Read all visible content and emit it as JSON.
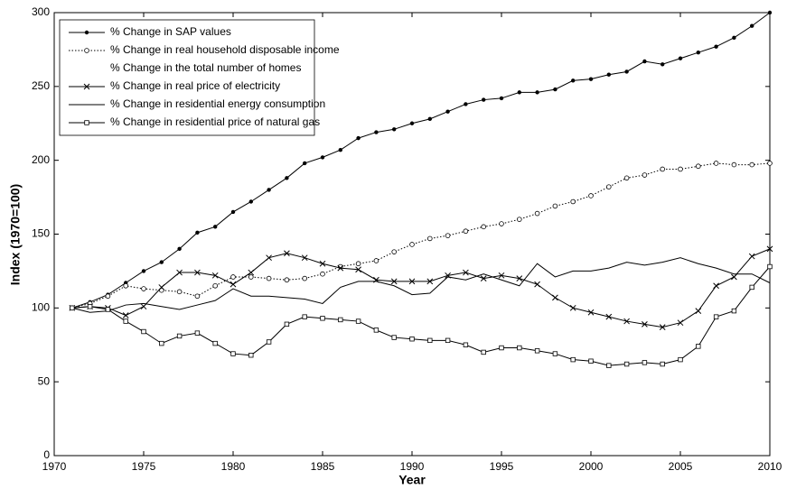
{
  "chart_data": {
    "type": "line",
    "x_label": "Year",
    "y_label": "Index (1970=100)",
    "xlim": [
      1970,
      2010
    ],
    "xticks": [
      1970,
      1975,
      1980,
      1985,
      1990,
      1995,
      2000,
      2005,
      2010
    ],
    "ylim": [
      0,
      300
    ],
    "yticks": [
      0,
      50,
      100,
      150,
      200,
      250,
      300
    ],
    "legend": "upper-left",
    "x": [
      1971,
      1972,
      1973,
      1974,
      1975,
      1976,
      1977,
      1978,
      1979,
      1980,
      1981,
      1982,
      1983,
      1984,
      1985,
      1986,
      1987,
      1988,
      1989,
      1990,
      1991,
      1992,
      1993,
      1994,
      1995,
      1996,
      1997,
      1998,
      1999,
      2000,
      2001,
      2002,
      2003,
      2004,
      2005,
      2006,
      2007,
      2008,
      2009,
      2010
    ],
    "series": [
      {
        "name": "% Change in SAP values",
        "color": "#000000",
        "marker": "dot",
        "dash": "solid",
        "values": [
          100,
          104,
          109,
          117,
          125,
          131,
          140,
          151,
          155,
          165,
          172,
          180,
          188,
          198,
          202,
          207,
          215,
          219,
          221,
          225,
          228,
          233,
          238,
          241,
          242,
          246,
          246,
          248,
          254,
          255,
          258,
          260,
          267,
          265,
          269,
          273,
          277,
          283,
          291,
          300
        ]
      },
      {
        "name": "% Change in real household disposable income",
        "color": "#000000",
        "marker": "circle",
        "dash": "dotted",
        "values": [
          100,
          103,
          108,
          115,
          113,
          112,
          111,
          108,
          115,
          121,
          121,
          120,
          119,
          120,
          123,
          128,
          130,
          132,
          138,
          143,
          147,
          149,
          152,
          155,
          157,
          160,
          164,
          169,
          172,
          176,
          182,
          188,
          190,
          194,
          194,
          196,
          198,
          197,
          197,
          198
        ]
      },
      {
        "name": "% Change in the total number of homes",
        "color": "#000000",
        "marker": "none",
        "dash": "none",
        "values": [
          null,
          null,
          null,
          null,
          null,
          null,
          null,
          null,
          null,
          null,
          null,
          null,
          null,
          null,
          null,
          null,
          null,
          null,
          null,
          null,
          null,
          null,
          null,
          null,
          null,
          null,
          null,
          null,
          null,
          null,
          null,
          null,
          null,
          null,
          null,
          null,
          null,
          null,
          null,
          null
        ]
      },
      {
        "name": "% Change in real price of electricity",
        "color": "#000000",
        "marker": "x",
        "dash": "solid",
        "values": [
          100,
          101,
          100,
          95,
          101,
          114,
          124,
          124,
          122,
          116,
          124,
          134,
          137,
          134,
          130,
          127,
          126,
          119,
          118,
          118,
          118,
          122,
          124,
          120,
          122,
          120,
          116,
          107,
          100,
          97,
          94,
          91,
          89,
          87,
          90,
          98,
          115,
          121,
          135,
          140
        ]
      },
      {
        "name": "% Change in residential energy consumption",
        "color": "#000000",
        "marker": "none",
        "dash": "solid",
        "values": [
          100,
          97,
          98,
          102,
          103,
          101,
          99,
          102,
          105,
          113,
          108,
          108,
          107,
          106,
          103,
          114,
          118,
          118,
          115,
          109,
          110,
          121,
          119,
          123,
          119,
          115,
          130,
          121,
          125,
          125,
          127,
          131,
          129,
          131,
          134,
          130,
          127,
          123,
          123,
          117
        ]
      },
      {
        "name": "% Change in residential price of natural gas",
        "color": "#000000",
        "marker": "square",
        "dash": "solid",
        "values": [
          100,
          101,
          99,
          91,
          84,
          76,
          81,
          83,
          76,
          69,
          68,
          77,
          89,
          94,
          93,
          92,
          91,
          85,
          80,
          79,
          78,
          78,
          75,
          70,
          73,
          73,
          71,
          69,
          65,
          64,
          61,
          62,
          63,
          62,
          65,
          74,
          94,
          98,
          114,
          128
        ]
      }
    ]
  }
}
